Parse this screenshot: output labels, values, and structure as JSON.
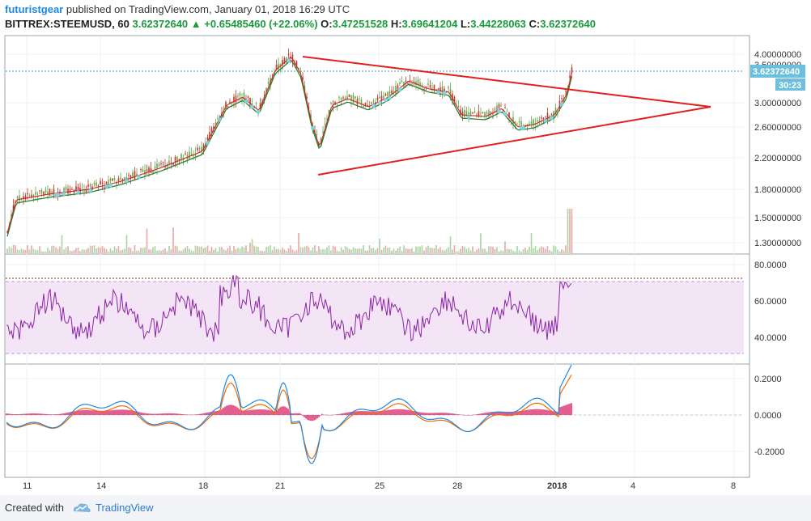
{
  "header": {
    "author": "futuristgear",
    "published_text": "published on TradingView.com, January 01, 2018 16:29 UTC",
    "symbol": "BITTREX:STEEMUSD, 60",
    "price": "3.62372640",
    "arrow": "▲",
    "change": "+0.65485460 (+22.06%)",
    "o_label": "O:",
    "o_value": "3.47251528",
    "h_label": "H:",
    "h_value": "3.69641204",
    "l_label": "L:",
    "l_value": "3.44228063",
    "c_label": "C:",
    "c_value": "3.62372640"
  },
  "price_axis": {
    "labels": [
      "4.00000000",
      "3.00000000",
      "2.60000000",
      "2.20000000",
      "1.80000000",
      "1.50000000",
      "1.30000000"
    ],
    "current_price_tag": "3.62372640",
    "countdown_tag": "30:23",
    "partial_label": "3.50000000"
  },
  "rsi_axis": {
    "labels": [
      "80.0000",
      "60.0000",
      "40.0000"
    ]
  },
  "macd_axis": {
    "labels": [
      "0.2000",
      "0.0000",
      "-0.2000"
    ]
  },
  "time_axis": {
    "labels": [
      "11",
      "14",
      "18",
      "21",
      "25",
      "28",
      "2018",
      "4",
      "8"
    ]
  },
  "colors": {
    "up": "#1a9b3a",
    "candle_up": "#6aa84f",
    "candle_down": "#c0392b",
    "triangle": "#e02020",
    "ema_green": "#2e7d32",
    "ema_red": "#c62828",
    "rsi_line": "#8e24aa",
    "rsi_band": "#f3e5f5",
    "macd_blue": "#1e88e5",
    "macd_orange": "#ef6c00",
    "macd_hist": "#d81b60",
    "price_tag": "#6cc0dd"
  },
  "footer": {
    "created_with": "Created with",
    "brand": "TradingView"
  }
}
